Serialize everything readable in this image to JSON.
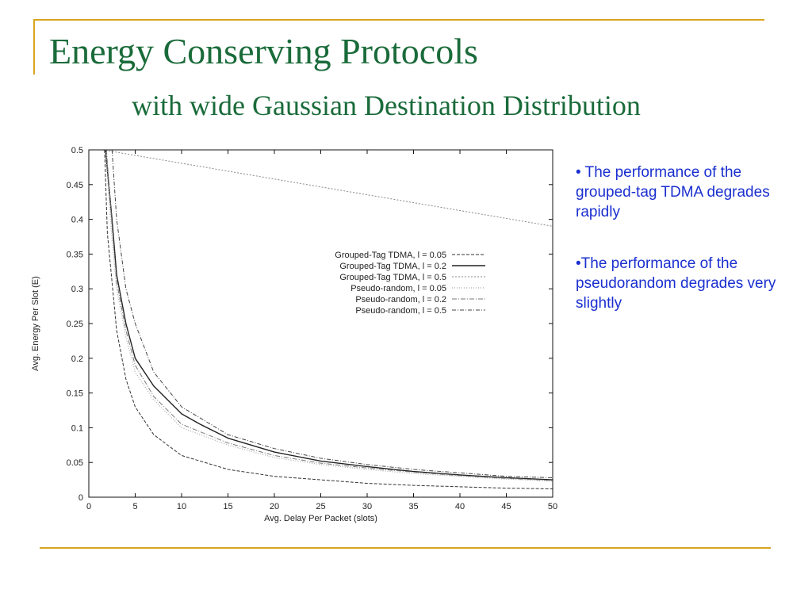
{
  "slide": {
    "title": "Energy Conserving Protocols",
    "subtitle": "with wide Gaussian Destination Distribution",
    "bullets": [
      "• The performance of the grouped-tag TDMA degrades rapidly",
      "•The performance of the pseudorandom degrades very slightly"
    ]
  },
  "chart_data": {
    "type": "line",
    "title": "",
    "xlabel": "Avg. Delay Per Packet (slots)",
    "ylabel": "Avg. Energy Per Slot (E)",
    "xlim": [
      0,
      50
    ],
    "ylim": [
      0,
      0.5
    ],
    "xticks": [
      "0",
      "5",
      "10",
      "15",
      "20",
      "25",
      "30",
      "35",
      "40",
      "45",
      "50"
    ],
    "yticks": [
      "0",
      "0.05",
      "0.1",
      "0.15",
      "0.2",
      "0.25",
      "0.3",
      "0.35",
      "0.4",
      "0.45",
      "0.5"
    ],
    "grid": false,
    "legend_position": "center-right",
    "series": [
      {
        "name": "Grouped-Tag TDMA, l = 0.05",
        "x": [
          1.7,
          2,
          3,
          4,
          5,
          7,
          10,
          15,
          20,
          25,
          30,
          35,
          40,
          45,
          50
        ],
        "y": [
          0.5,
          0.38,
          0.24,
          0.17,
          0.13,
          0.09,
          0.06,
          0.04,
          0.03,
          0.025,
          0.02,
          0.017,
          0.015,
          0.013,
          0.012
        ],
        "color": "#333333",
        "dash": "4,2",
        "width": 1
      },
      {
        "name": "Grouped-Tag TDMA, l =  0.2",
        "x": [
          1.8,
          2.5,
          3,
          4,
          5,
          7,
          10,
          12,
          15,
          20,
          25,
          30,
          35,
          40,
          45,
          50
        ],
        "y": [
          0.5,
          0.4,
          0.32,
          0.25,
          0.2,
          0.16,
          0.12,
          0.105,
          0.085,
          0.065,
          0.052,
          0.044,
          0.037,
          0.032,
          0.028,
          0.025
        ],
        "color": "#222222",
        "dash": "",
        "width": 1.4
      },
      {
        "name": "Grouped-Tag TDMA, l =  0.5",
        "x": [
          1.5,
          50
        ],
        "y": [
          0.5,
          0.39
        ],
        "color": "#888888",
        "dash": "2,2",
        "width": 1
      },
      {
        "name": "Pseudo-random, l = 0.05",
        "x": [
          1.8,
          2.5,
          3,
          4,
          5,
          7,
          10,
          15,
          20,
          25,
          30,
          35,
          40,
          45,
          50
        ],
        "y": [
          0.5,
          0.37,
          0.3,
          0.23,
          0.18,
          0.14,
          0.1,
          0.075,
          0.057,
          0.047,
          0.04,
          0.034,
          0.03,
          0.026,
          0.023
        ],
        "color": "#aaaaaa",
        "dash": "1,2",
        "width": 1.2
      },
      {
        "name": "Pseudo-random, l =  0.2",
        "x": [
          1.9,
          2.5,
          3,
          4,
          5,
          7,
          10,
          15,
          20,
          25,
          30,
          35,
          40,
          45,
          50
        ],
        "y": [
          0.5,
          0.39,
          0.31,
          0.24,
          0.19,
          0.145,
          0.105,
          0.078,
          0.06,
          0.049,
          0.042,
          0.036,
          0.031,
          0.027,
          0.024
        ],
        "color": "#777777",
        "dash": "6,2,1,2",
        "width": 1
      },
      {
        "name": "Pseudo-random, l =  0.5",
        "x": [
          2.5,
          3,
          4,
          5,
          7,
          10,
          15,
          20,
          25,
          30,
          35,
          40,
          45,
          50
        ],
        "y": [
          0.5,
          0.4,
          0.3,
          0.25,
          0.18,
          0.13,
          0.09,
          0.07,
          0.056,
          0.047,
          0.04,
          0.035,
          0.03,
          0.028
        ],
        "color": "#444444",
        "dash": "5,2,1,2",
        "width": 1
      }
    ]
  }
}
